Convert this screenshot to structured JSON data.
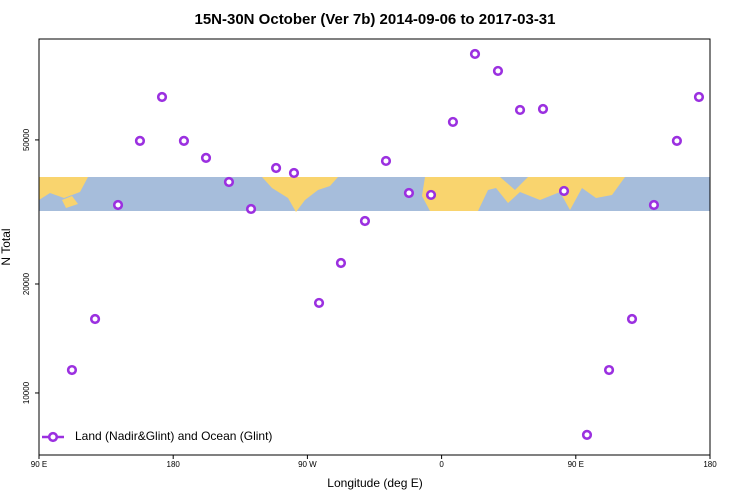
{
  "chart_data": {
    "type": "scatter",
    "title": "15N-30N October (Ver 7b)   2014-09-06 to 2017-03-31",
    "xlabel": "Longitude (deg E)",
    "ylabel": "N Total",
    "log_y": true,
    "legend": "lower left",
    "xlim": [
      90,
      540
    ],
    "xticks": [
      {
        "value": 90,
        "label": "90 E"
      },
      180,
      {
        "value": 270,
        "label": "90 W"
      },
      {
        "value": 360,
        "label": "0"
      },
      {
        "value": 450,
        "label": "90 E"
      },
      {
        "value": 540,
        "label": "180"
      }
    ],
    "ylim": [
      6740,
      95000
    ],
    "yticks": [
      10000,
      20000,
      50000
    ],
    "series": [
      {
        "name": "Land (Nadir&Glint) and Ocean (Glint)",
        "color": "#9b30e0",
        "x": [
          112.1,
          127.6,
          143,
          157.7,
          172.5,
          187.2,
          202,
          217.4,
          232.2,
          249,
          261,
          277.8,
          292.5,
          308.6,
          322.7,
          338.1,
          352.9,
          367.6,
          382.4,
          397.8,
          412.6,
          428,
          442.1,
          457.5,
          472.3,
          487.7,
          502.4,
          517.8,
          532.6
        ],
        "values": [
          11570,
          16010,
          33050,
          49700,
          65700,
          49700,
          44600,
          38250,
          32230,
          41830,
          40520,
          17730,
          22860,
          29860,
          43740,
          35680,
          35240,
          56060,
          86380,
          77540,
          60500,
          60860,
          36130,
          7660,
          11570,
          16010,
          33050,
          49700,
          65700
        ]
      }
    ]
  }
}
